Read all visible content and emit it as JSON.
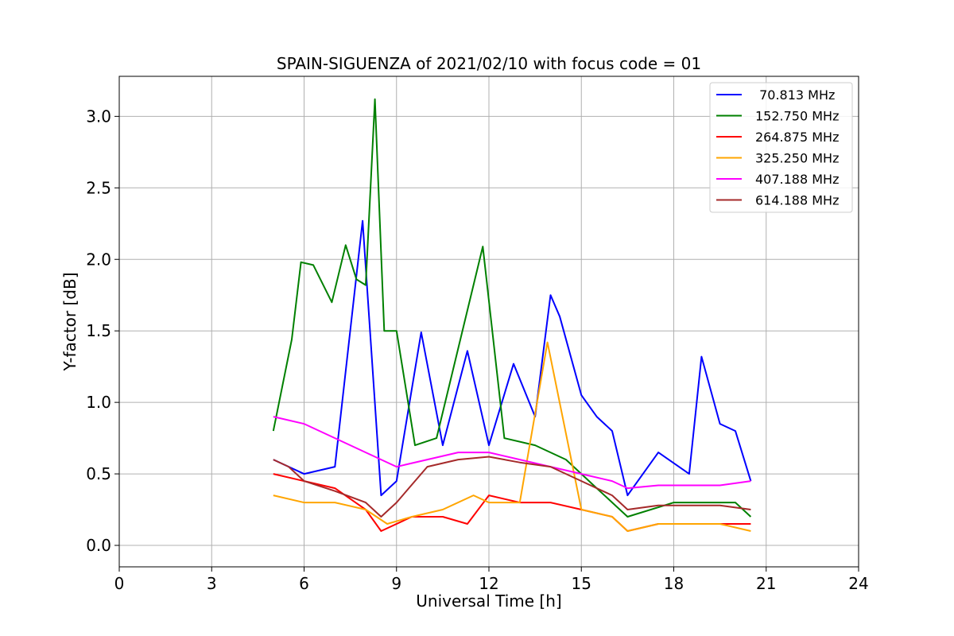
{
  "chart_data": {
    "type": "line",
    "title": "SPAIN-SIGUENZA of 2021/02/10 with focus code = 01",
    "xlabel": "Universal Time [h]",
    "ylabel": "Y-factor [dB]",
    "xlim": [
      0,
      24
    ],
    "ylim": [
      -0.15,
      3.28
    ],
    "xticks": [
      0,
      3,
      6,
      9,
      12,
      15,
      18,
      21,
      24
    ],
    "xtick_labels": [
      "0",
      "3",
      "6",
      "9",
      "12",
      "15",
      "18",
      "21",
      "24"
    ],
    "yticks": [
      0.0,
      0.5,
      1.0,
      1.5,
      2.0,
      2.5,
      3.0
    ],
    "ytick_labels": [
      "0.0",
      "0.5",
      "1.0",
      "1.5",
      "2.0",
      "2.5",
      "3.0"
    ],
    "grid": true,
    "legend_position": "top-right",
    "series": [
      {
        "name": " 70.813 MHz",
        "color": "#0000ff",
        "x": [
          5.0,
          6.0,
          7.0,
          7.9,
          8.5,
          9.0,
          9.8,
          10.5,
          11.3,
          12.0,
          12.8,
          13.5,
          14.0,
          14.3,
          15.0,
          15.5,
          16.0,
          16.5,
          17.5,
          18.5,
          18.9,
          19.5,
          20.0,
          20.5
        ],
        "y": [
          0.6,
          0.5,
          0.55,
          2.27,
          0.35,
          0.45,
          1.49,
          0.7,
          1.36,
          0.7,
          1.27,
          0.9,
          1.75,
          1.6,
          1.05,
          0.9,
          0.8,
          0.35,
          0.65,
          0.5,
          1.32,
          0.85,
          0.8,
          0.45
        ]
      },
      {
        "name": "152.750 MHz",
        "color": "#008000",
        "x": [
          5.0,
          5.6,
          5.9,
          6.3,
          6.9,
          7.35,
          7.7,
          8.0,
          8.3,
          8.6,
          9.0,
          9.6,
          10.3,
          11.8,
          12.5,
          13.5,
          14.5,
          15.5,
          16.5,
          18.0,
          19.0,
          20.0,
          20.5
        ],
        "y": [
          0.8,
          1.44,
          1.98,
          1.96,
          1.7,
          2.1,
          1.86,
          1.82,
          3.12,
          1.5,
          1.5,
          0.7,
          0.75,
          2.09,
          0.75,
          0.7,
          0.6,
          0.4,
          0.2,
          0.3,
          0.3,
          0.3,
          0.2
        ]
      },
      {
        "name": "264.875 MHz",
        "color": "#ff0000",
        "x": [
          5.0,
          6.0,
          7.0,
          8.0,
          8.5,
          9.5,
          10.5,
          11.3,
          12.0,
          13.0,
          14.0,
          15.0,
          16.0,
          16.5,
          17.5,
          18.5,
          19.5,
          20.5
        ],
        "y": [
          0.5,
          0.45,
          0.4,
          0.25,
          0.1,
          0.2,
          0.2,
          0.15,
          0.35,
          0.3,
          0.3,
          0.25,
          0.2,
          0.1,
          0.15,
          0.15,
          0.15,
          0.15
        ]
      },
      {
        "name": "325.250 MHz",
        "color": "#ffa500",
        "x": [
          5.0,
          6.0,
          7.0,
          8.0,
          8.7,
          9.5,
          10.5,
          11.5,
          12.0,
          13.0,
          13.9,
          15.0,
          16.0,
          16.5,
          17.5,
          18.5,
          19.5,
          20.5
        ],
        "y": [
          0.35,
          0.3,
          0.3,
          0.25,
          0.15,
          0.2,
          0.25,
          0.35,
          0.3,
          0.3,
          1.42,
          0.25,
          0.2,
          0.1,
          0.15,
          0.15,
          0.15,
          0.1
        ]
      },
      {
        "name": "407.188 MHz",
        "color": "#ff00ff",
        "x": [
          5.0,
          6.0,
          7.0,
          8.0,
          9.0,
          10.0,
          11.0,
          12.0,
          13.0,
          14.0,
          15.0,
          16.0,
          16.5,
          17.5,
          18.5,
          19.5,
          20.5
        ],
        "y": [
          0.9,
          0.85,
          0.75,
          0.65,
          0.55,
          0.6,
          0.65,
          0.65,
          0.6,
          0.55,
          0.5,
          0.45,
          0.4,
          0.42,
          0.42,
          0.42,
          0.45
        ]
      },
      {
        "name": "614.188 MHz",
        "color": "#a52a2a",
        "x": [
          5.0,
          5.5,
          6.0,
          7.0,
          8.0,
          8.5,
          9.0,
          10.0,
          11.0,
          12.0,
          13.0,
          14.0,
          15.0,
          16.0,
          16.5,
          17.5,
          18.5,
          19.5,
          20.5
        ],
        "y": [
          0.6,
          0.55,
          0.45,
          0.38,
          0.3,
          0.2,
          0.3,
          0.55,
          0.6,
          0.62,
          0.58,
          0.55,
          0.45,
          0.35,
          0.25,
          0.28,
          0.28,
          0.28,
          0.25
        ]
      }
    ]
  }
}
